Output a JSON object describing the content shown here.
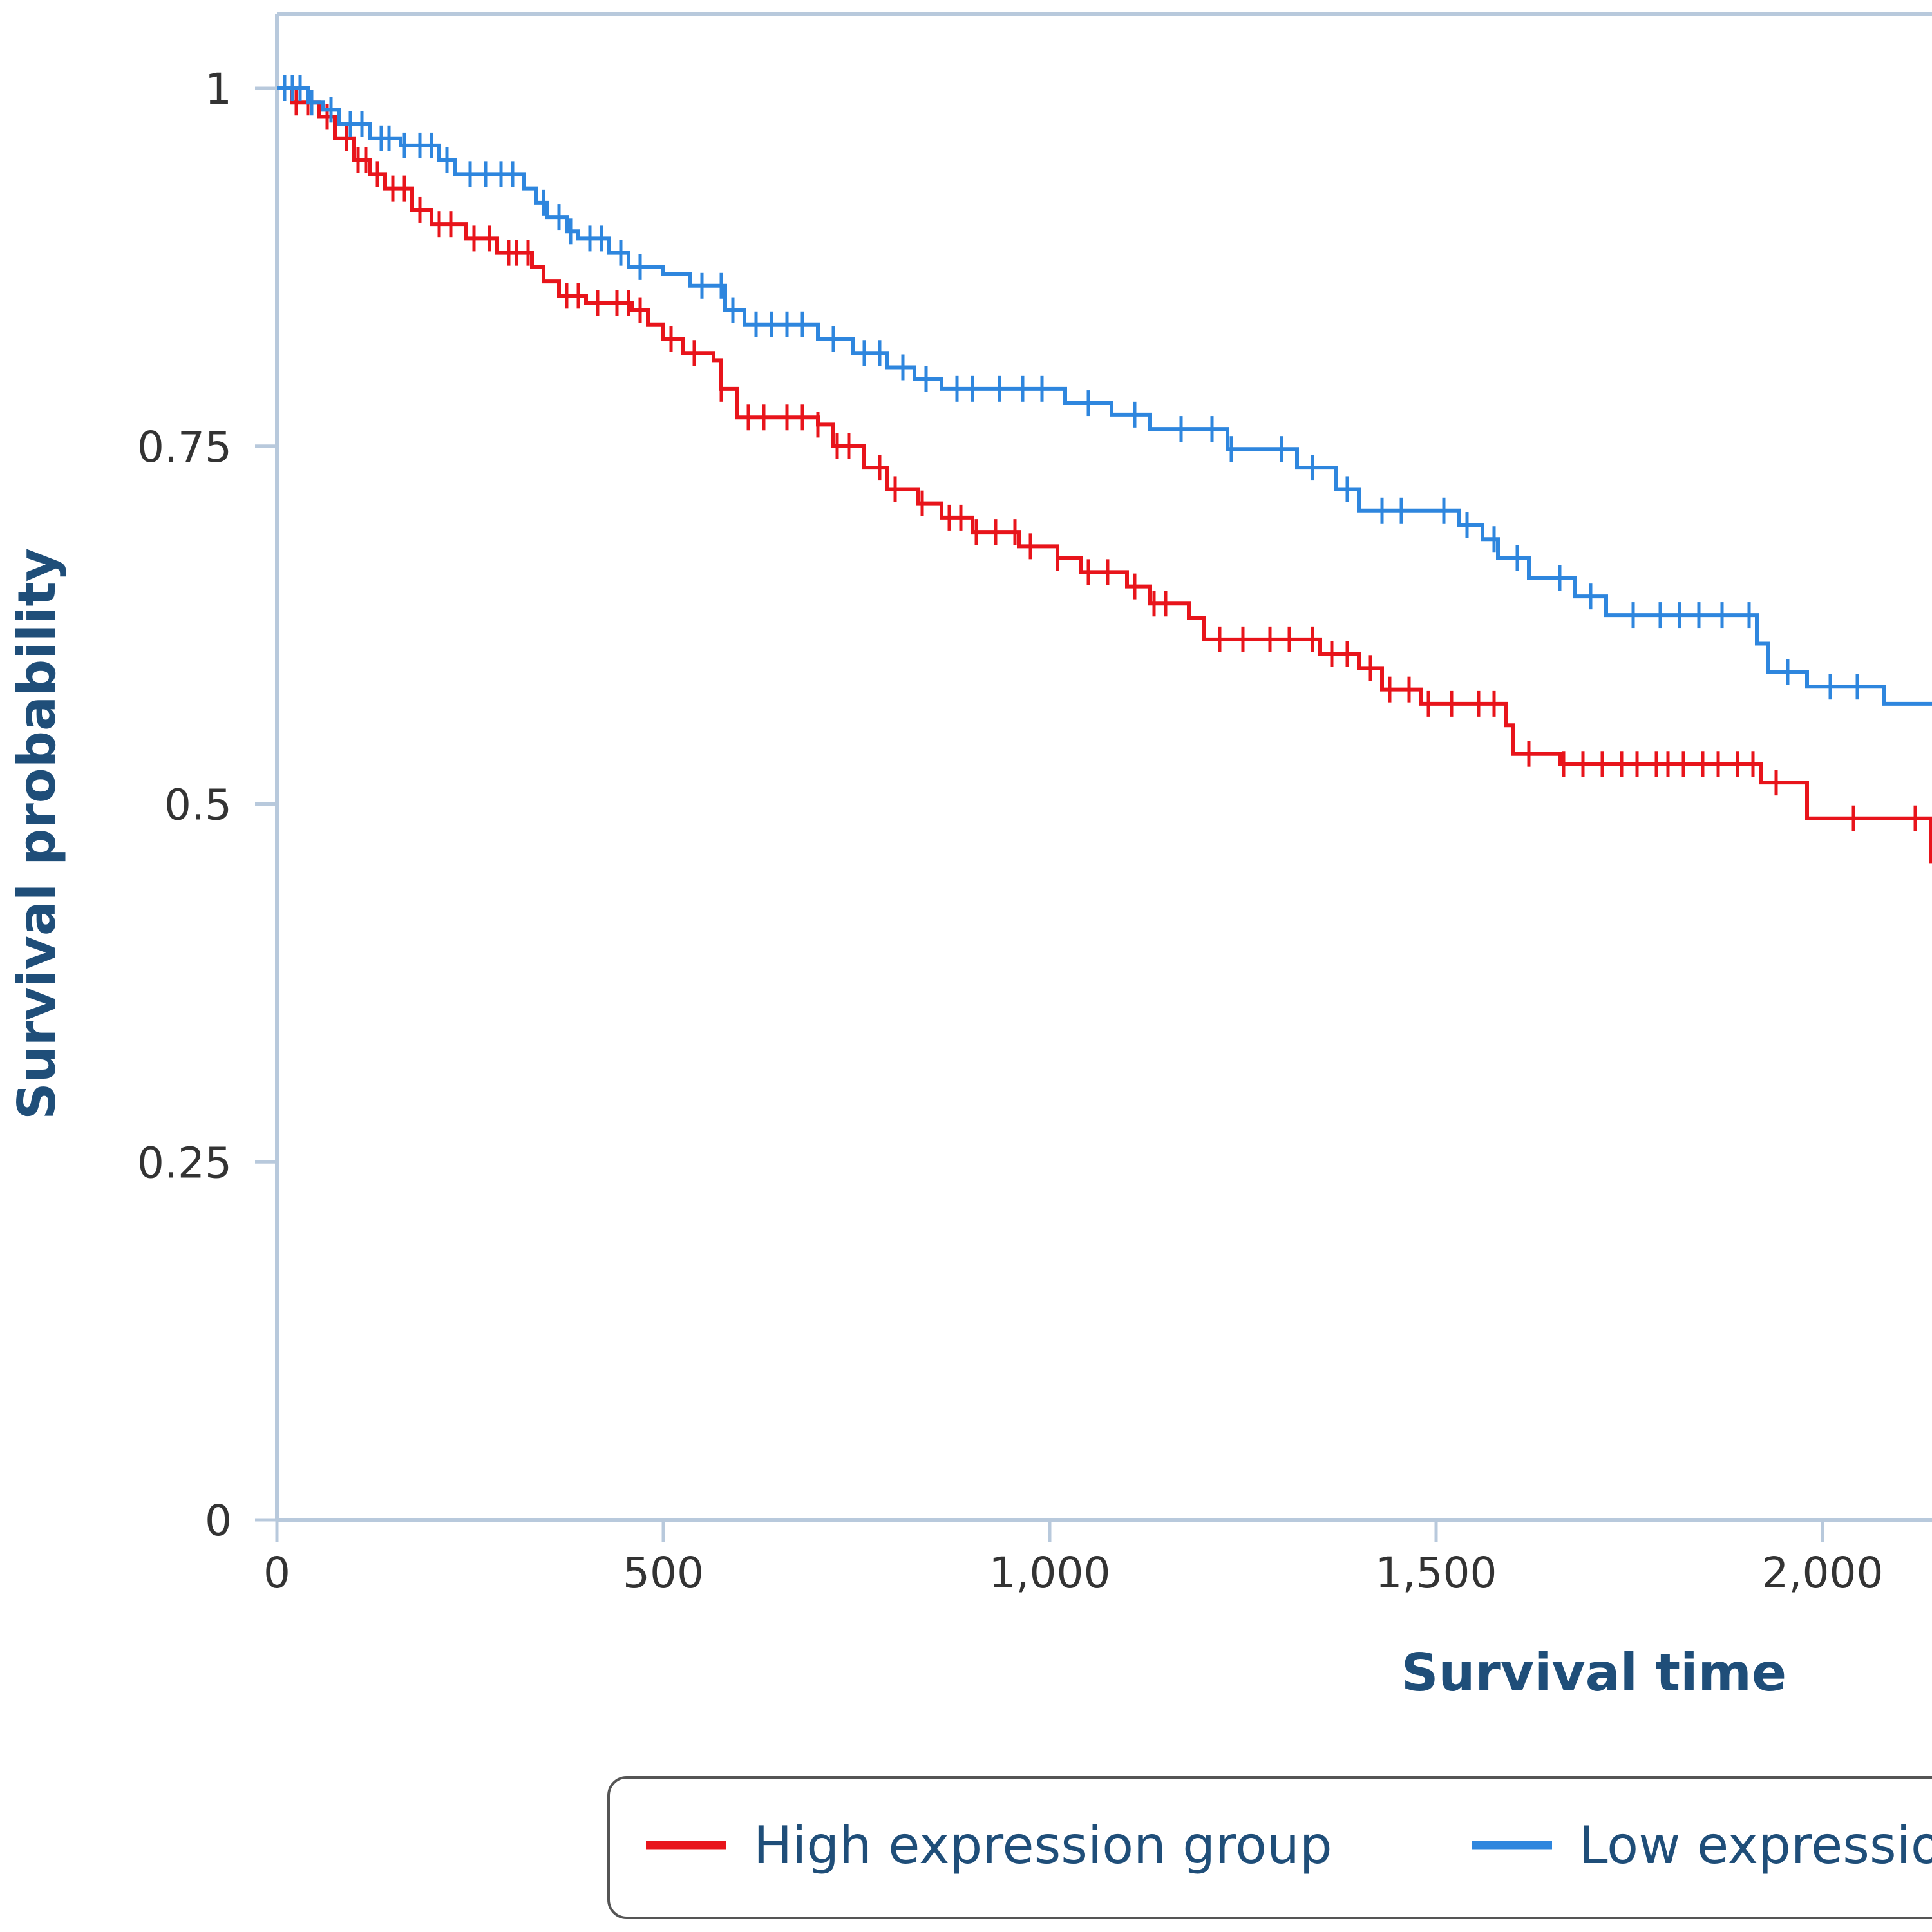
{
  "chart_data": {
    "type": "line",
    "step": true,
    "title": "",
    "xlabel": "Survival time",
    "ylabel": "Survival probability",
    "xlim": [
      0,
      2150
    ],
    "ylim": [
      0,
      1.02
    ],
    "x_ticks": [
      0,
      500,
      1000,
      1500,
      2000
    ],
    "x_tick_labels": [
      "0",
      "500",
      "1,000",
      "1,500",
      "2,000"
    ],
    "y_ticks": [
      0,
      0.25,
      0.5,
      0.75,
      1
    ],
    "y_tick_labels": [
      "0",
      "0.25",
      "0.5",
      "0.75",
      "1"
    ],
    "grid": false,
    "legend_position": "bottom",
    "series": [
      {
        "name": "High expression group",
        "color": "#e8141b",
        "steps": [
          [
            0,
            1.0
          ],
          [
            20,
            0.99
          ],
          [
            55,
            0.98
          ],
          [
            75,
            0.965
          ],
          [
            100,
            0.95
          ],
          [
            120,
            0.94
          ],
          [
            140,
            0.93
          ],
          [
            175,
            0.915
          ],
          [
            200,
            0.905
          ],
          [
            245,
            0.895
          ],
          [
            285,
            0.885
          ],
          [
            330,
            0.875
          ],
          [
            345,
            0.865
          ],
          [
            365,
            0.855
          ],
          [
            400,
            0.85
          ],
          [
            460,
            0.845
          ],
          [
            480,
            0.835
          ],
          [
            500,
            0.825
          ],
          [
            525,
            0.815
          ],
          [
            565,
            0.81
          ],
          [
            575,
            0.79
          ],
          [
            595,
            0.77
          ],
          [
            700,
            0.765
          ],
          [
            720,
            0.75
          ],
          [
            760,
            0.735
          ],
          [
            790,
            0.72
          ],
          [
            830,
            0.71
          ],
          [
            860,
            0.7
          ],
          [
            900,
            0.69
          ],
          [
            960,
            0.68
          ],
          [
            1010,
            0.672
          ],
          [
            1040,
            0.662
          ],
          [
            1100,
            0.652
          ],
          [
            1130,
            0.64
          ],
          [
            1180,
            0.63
          ],
          [
            1200,
            0.615
          ],
          [
            1350,
            0.605
          ],
          [
            1400,
            0.595
          ],
          [
            1430,
            0.58
          ],
          [
            1480,
            0.57
          ],
          [
            1590,
            0.555
          ],
          [
            1600,
            0.535
          ],
          [
            1660,
            0.528
          ],
          [
            1920,
            0.515
          ],
          [
            1980,
            0.49
          ],
          [
            2140,
            0.46
          ]
        ],
        "censored": [
          25,
          40,
          65,
          90,
          105,
          115,
          130,
          150,
          165,
          185,
          210,
          225,
          255,
          275,
          300,
          310,
          325,
          375,
          390,
          415,
          440,
          455,
          470,
          510,
          540,
          575,
          610,
          630,
          660,
          680,
          700,
          725,
          740,
          780,
          800,
          835,
          870,
          885,
          905,
          930,
          955,
          975,
          1010,
          1050,
          1075,
          1110,
          1135,
          1150,
          1220,
          1250,
          1285,
          1310,
          1340,
          1365,
          1385,
          1415,
          1440,
          1465,
          1490,
          1520,
          1555,
          1575,
          1620,
          1665,
          1690,
          1715,
          1740,
          1760,
          1785,
          1800,
          1820,
          1845,
          1865,
          1890,
          1910,
          1940,
          2040,
          2120
        ]
      },
      {
        "name": "Low expression group",
        "color": "#2e86de",
        "steps": [
          [
            0,
            1.0
          ],
          [
            40,
            0.99
          ],
          [
            60,
            0.985
          ],
          [
            80,
            0.975
          ],
          [
            120,
            0.965
          ],
          [
            160,
            0.96
          ],
          [
            210,
            0.95
          ],
          [
            230,
            0.94
          ],
          [
            320,
            0.93
          ],
          [
            335,
            0.92
          ],
          [
            350,
            0.91
          ],
          [
            375,
            0.9
          ],
          [
            390,
            0.895
          ],
          [
            430,
            0.885
          ],
          [
            455,
            0.875
          ],
          [
            500,
            0.87
          ],
          [
            535,
            0.862
          ],
          [
            580,
            0.845
          ],
          [
            605,
            0.835
          ],
          [
            700,
            0.825
          ],
          [
            745,
            0.815
          ],
          [
            790,
            0.805
          ],
          [
            825,
            0.797
          ],
          [
            860,
            0.79
          ],
          [
            1020,
            0.78
          ],
          [
            1080,
            0.772
          ],
          [
            1130,
            0.762
          ],
          [
            1230,
            0.748
          ],
          [
            1320,
            0.735
          ],
          [
            1370,
            0.72
          ],
          [
            1400,
            0.705
          ],
          [
            1530,
            0.695
          ],
          [
            1560,
            0.685
          ],
          [
            1580,
            0.672
          ],
          [
            1620,
            0.658
          ],
          [
            1680,
            0.645
          ],
          [
            1720,
            0.632
          ],
          [
            1915,
            0.612
          ],
          [
            1930,
            0.592
          ],
          [
            1980,
            0.582
          ],
          [
            2080,
            0.57
          ]
        ],
        "censored": [
          10,
          20,
          30,
          45,
          70,
          95,
          110,
          135,
          145,
          165,
          185,
          200,
          220,
          250,
          270,
          290,
          305,
          345,
          365,
          380,
          405,
          420,
          445,
          470,
          550,
          575,
          590,
          620,
          640,
          660,
          680,
          720,
          760,
          780,
          810,
          840,
          880,
          900,
          935,
          965,
          990,
          1050,
          1110,
          1170,
          1210,
          1235,
          1300,
          1340,
          1385,
          1430,
          1455,
          1510,
          1540,
          1575,
          1605,
          1660,
          1700,
          1755,
          1790,
          1815,
          1840,
          1870,
          1905,
          1955,
          2010,
          2045
        ]
      }
    ]
  }
}
